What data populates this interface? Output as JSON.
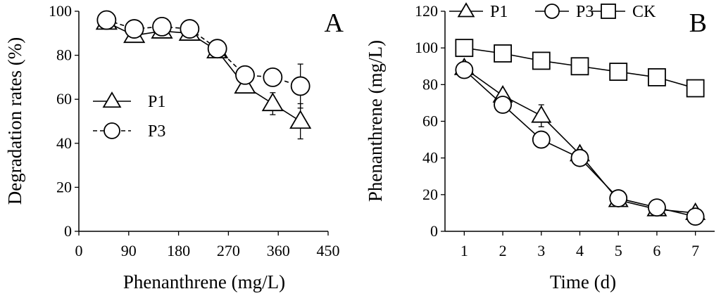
{
  "chart_data": [
    {
      "type": "line",
      "panel_label": "A",
      "xlabel": "Phenanthrene (mg/L)",
      "ylabel": "Degradation rates (%)",
      "xlim": [
        0,
        450
      ],
      "ylim": [
        0,
        100
      ],
      "x_ticks": [
        0,
        90,
        180,
        270,
        360,
        450
      ],
      "y_ticks": [
        0,
        20,
        40,
        60,
        80,
        100
      ],
      "grid": false,
      "legend_position": "left-middle",
      "x": [
        50,
        100,
        150,
        200,
        250,
        300,
        350,
        400
      ],
      "series": [
        {
          "name": "P1",
          "marker": "triangle",
          "line_style": "solid",
          "values": [
            95,
            89,
            91,
            90,
            82,
            66,
            58,
            50
          ],
          "errors": [
            1,
            1,
            1,
            1,
            1,
            3,
            5,
            8
          ]
        },
        {
          "name": "P3",
          "marker": "circle",
          "line_style": "dashed",
          "values": [
            96,
            92,
            93,
            92,
            83,
            71,
            70,
            66
          ],
          "errors": [
            1,
            1,
            1,
            1,
            1,
            2,
            3,
            10
          ]
        }
      ]
    },
    {
      "type": "line",
      "panel_label": "B",
      "xlabel": "Time (d)",
      "ylabel": "Phenanthrene (mg/L)",
      "xlim": [
        0.5,
        7.5
      ],
      "ylim": [
        0,
        120
      ],
      "x_ticks": [
        1,
        2,
        3,
        4,
        5,
        6,
        7
      ],
      "y_ticks": [
        0,
        20,
        40,
        60,
        80,
        100,
        120
      ],
      "grid": false,
      "legend_position": "top-left",
      "x": [
        1,
        2,
        3,
        4,
        5,
        6,
        7
      ],
      "series": [
        {
          "name": "P1",
          "marker": "triangle",
          "line_style": "solid",
          "values": [
            89,
            74,
            63,
            42,
            17,
            12,
            10
          ],
          "errors": [
            1,
            2,
            6,
            1,
            1,
            1,
            1
          ]
        },
        {
          "name": "P3",
          "marker": "circle",
          "line_style": "solid",
          "values": [
            88,
            69,
            50,
            40,
            18,
            13,
            8
          ],
          "errors": [
            1,
            2,
            3,
            1,
            1,
            1,
            1
          ]
        },
        {
          "name": "CK",
          "marker": "square",
          "line_style": "solid",
          "values": [
            100,
            97,
            93,
            90,
            87,
            84,
            78
          ],
          "errors": [
            1,
            3,
            1,
            3,
            2,
            1,
            1
          ]
        }
      ]
    }
  ]
}
